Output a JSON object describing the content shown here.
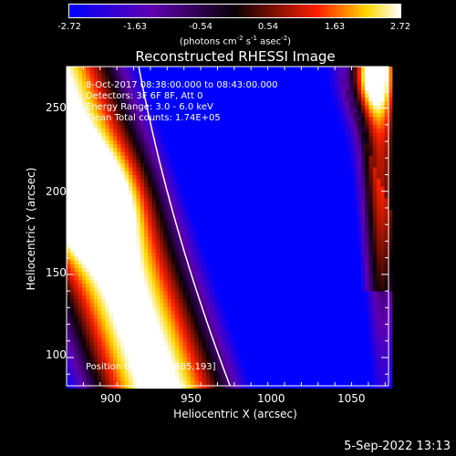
{
  "colorbar": {
    "tick_labels": [
      "-2.72",
      "-1.63",
      "-0.54",
      "0.54",
      "1.63",
      "2.72"
    ],
    "units_prefix": "(photons cm",
    "units_exp1": "-2",
    "units_mid1": " s",
    "units_exp2": "-1",
    "units_mid2": " asec",
    "units_exp3": "-2",
    "units_suffix": ")",
    "min": -2.72,
    "max": 2.72
  },
  "title": "Reconstructed RHESSI Image",
  "info_lines": [
    " 8-Oct-2017 08:38:00.000 to 08:43:00.000",
    "Detectors: 3F 6F 8F, Att 0",
    "Energy Range: 3.0 - 6.0 keV",
    "Clean     Total counts: 1.74E+05"
  ],
  "peak_text": "Position of Peak = [885,193]",
  "footer": "5-Sep-2022 13:13",
  "chart_data": {
    "type": "heatmap",
    "title": "Reconstructed RHESSI Image",
    "xlabel": "Heliocentric X (arcsec)",
    "ylabel": "Heliocentric Y (arcsec)",
    "xlim": [
      875,
      1067
    ],
    "ylim": [
      83,
      275
    ],
    "x_ticks": [
      900,
      950,
      1000,
      1050
    ],
    "y_ticks": [
      100,
      150,
      200,
      250
    ],
    "value_range": [
      -2.72,
      2.72
    ],
    "peak": [
      885,
      193
    ],
    "colormap": "blue-purple-red-yellow-white"
  }
}
